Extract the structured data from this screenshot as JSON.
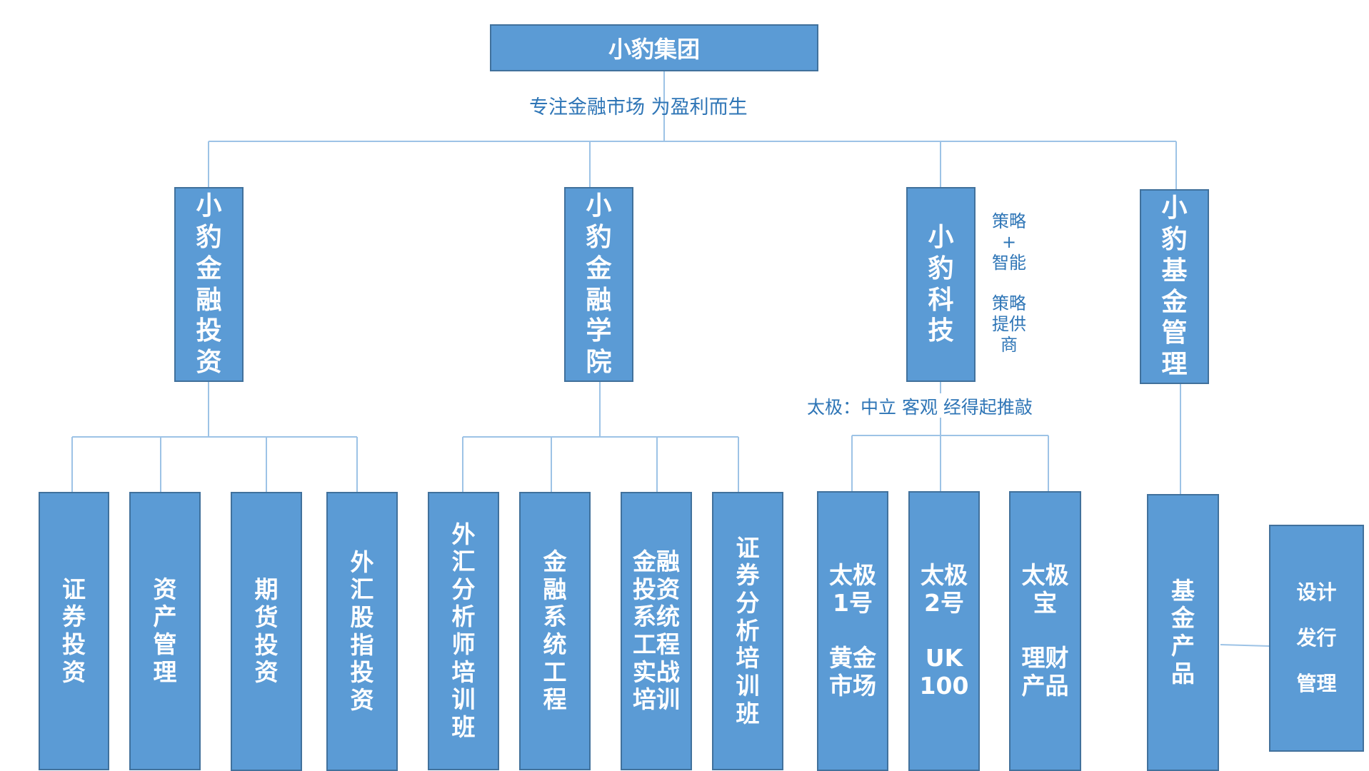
{
  "root": {
    "label": "小豹集团",
    "slogan": "专注金融市场 为盈利而生"
  },
  "branches": [
    {
      "label": "小\n豹\n金\n融\n投\n资",
      "children": [
        "证\n券\n投\n资",
        "资\n产\n管\n理",
        "期\n货\n投\n资",
        "外\n汇\n股\n指\n投\n资"
      ]
    },
    {
      "label": "小\n豹\n金\n融\n学\n院",
      "children": [
        "外\n汇\n分\n析\n师\n培\n训\n班",
        "金\n融\n系\n统\n工\n程",
        "金融\n投资\n系统\n工程\n实战\n培训",
        "证\n券\n分\n析\n培\n训\n班"
      ]
    },
    {
      "label": "小\n豹\n科\n技",
      "side_note": "策略\n+\n智能\n\n策略\n提供\n商",
      "note": "太极：中立 客观 经得起推敲",
      "children": [
        "太极\n1号\n\n黄金\n市场",
        "太极\n2号\n\nUK\n100",
        "太极\n宝\n\n理财\n产品"
      ]
    },
    {
      "label": "小\n豹\n基\n金\n管\n理",
      "children": [
        "基\n金\n产\n品"
      ],
      "extra": "设计\n\n发行\n\n管理"
    }
  ],
  "colors": {
    "box_fill": "#5b9bd5",
    "box_border": "#41719c",
    "connector": "#9dc3e6",
    "note_text": "#2e75b6"
  }
}
